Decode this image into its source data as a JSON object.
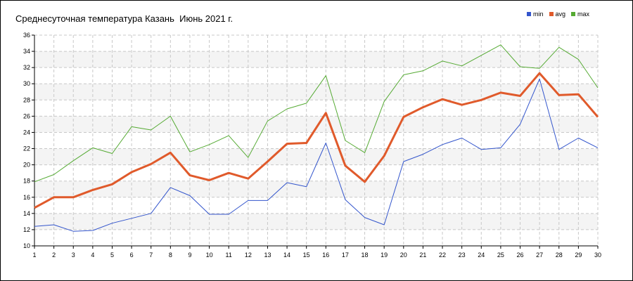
{
  "chart_data": {
    "type": "line",
    "title": "Среднесуточная температура Казань  Июнь 2021 г.",
    "x": [
      1,
      2,
      3,
      4,
      5,
      6,
      7,
      8,
      9,
      10,
      11,
      12,
      13,
      14,
      15,
      16,
      17,
      18,
      19,
      20,
      21,
      22,
      23,
      24,
      25,
      26,
      27,
      28,
      29,
      30
    ],
    "xlim": [
      1,
      30
    ],
    "ylim": [
      10,
      36
    ],
    "yticks": [
      10,
      12,
      14,
      16,
      18,
      20,
      22,
      24,
      26,
      28,
      30,
      32,
      34,
      36
    ],
    "grid": true,
    "legend_position": "top-right",
    "series": [
      {
        "name": "min",
        "color": "#3355cc",
        "values": [
          12.4,
          12.6,
          11.8,
          11.9,
          12.8,
          13.4,
          14.0,
          17.2,
          16.2,
          13.9,
          13.9,
          15.6,
          15.6,
          17.8,
          17.3,
          22.7,
          15.7,
          13.5,
          12.6,
          20.4,
          21.3,
          22.5,
          23.3,
          21.9,
          22.1,
          25.0,
          30.6,
          21.9,
          23.3,
          22.1
        ]
      },
      {
        "name": "avg",
        "color": "#e05a2b",
        "values": [
          14.7,
          16.0,
          16.0,
          16.9,
          17.6,
          19.1,
          20.1,
          21.5,
          18.7,
          18.1,
          19.0,
          18.3,
          20.4,
          22.6,
          22.7,
          26.4,
          19.9,
          17.9,
          21.1,
          25.9,
          27.1,
          28.1,
          27.4,
          28.0,
          28.9,
          28.5,
          31.3,
          28.6,
          28.7,
          25.9
        ]
      },
      {
        "name": "max",
        "color": "#55aa33",
        "values": [
          17.9,
          18.8,
          20.5,
          22.1,
          21.4,
          24.7,
          24.3,
          26.0,
          21.6,
          22.5,
          23.6,
          20.9,
          25.4,
          26.9,
          27.6,
          31.0,
          23.0,
          21.5,
          27.8,
          31.1,
          31.6,
          32.8,
          32.2,
          33.5,
          34.8,
          32.1,
          31.9,
          34.5,
          33.0,
          29.5
        ]
      }
    ]
  }
}
